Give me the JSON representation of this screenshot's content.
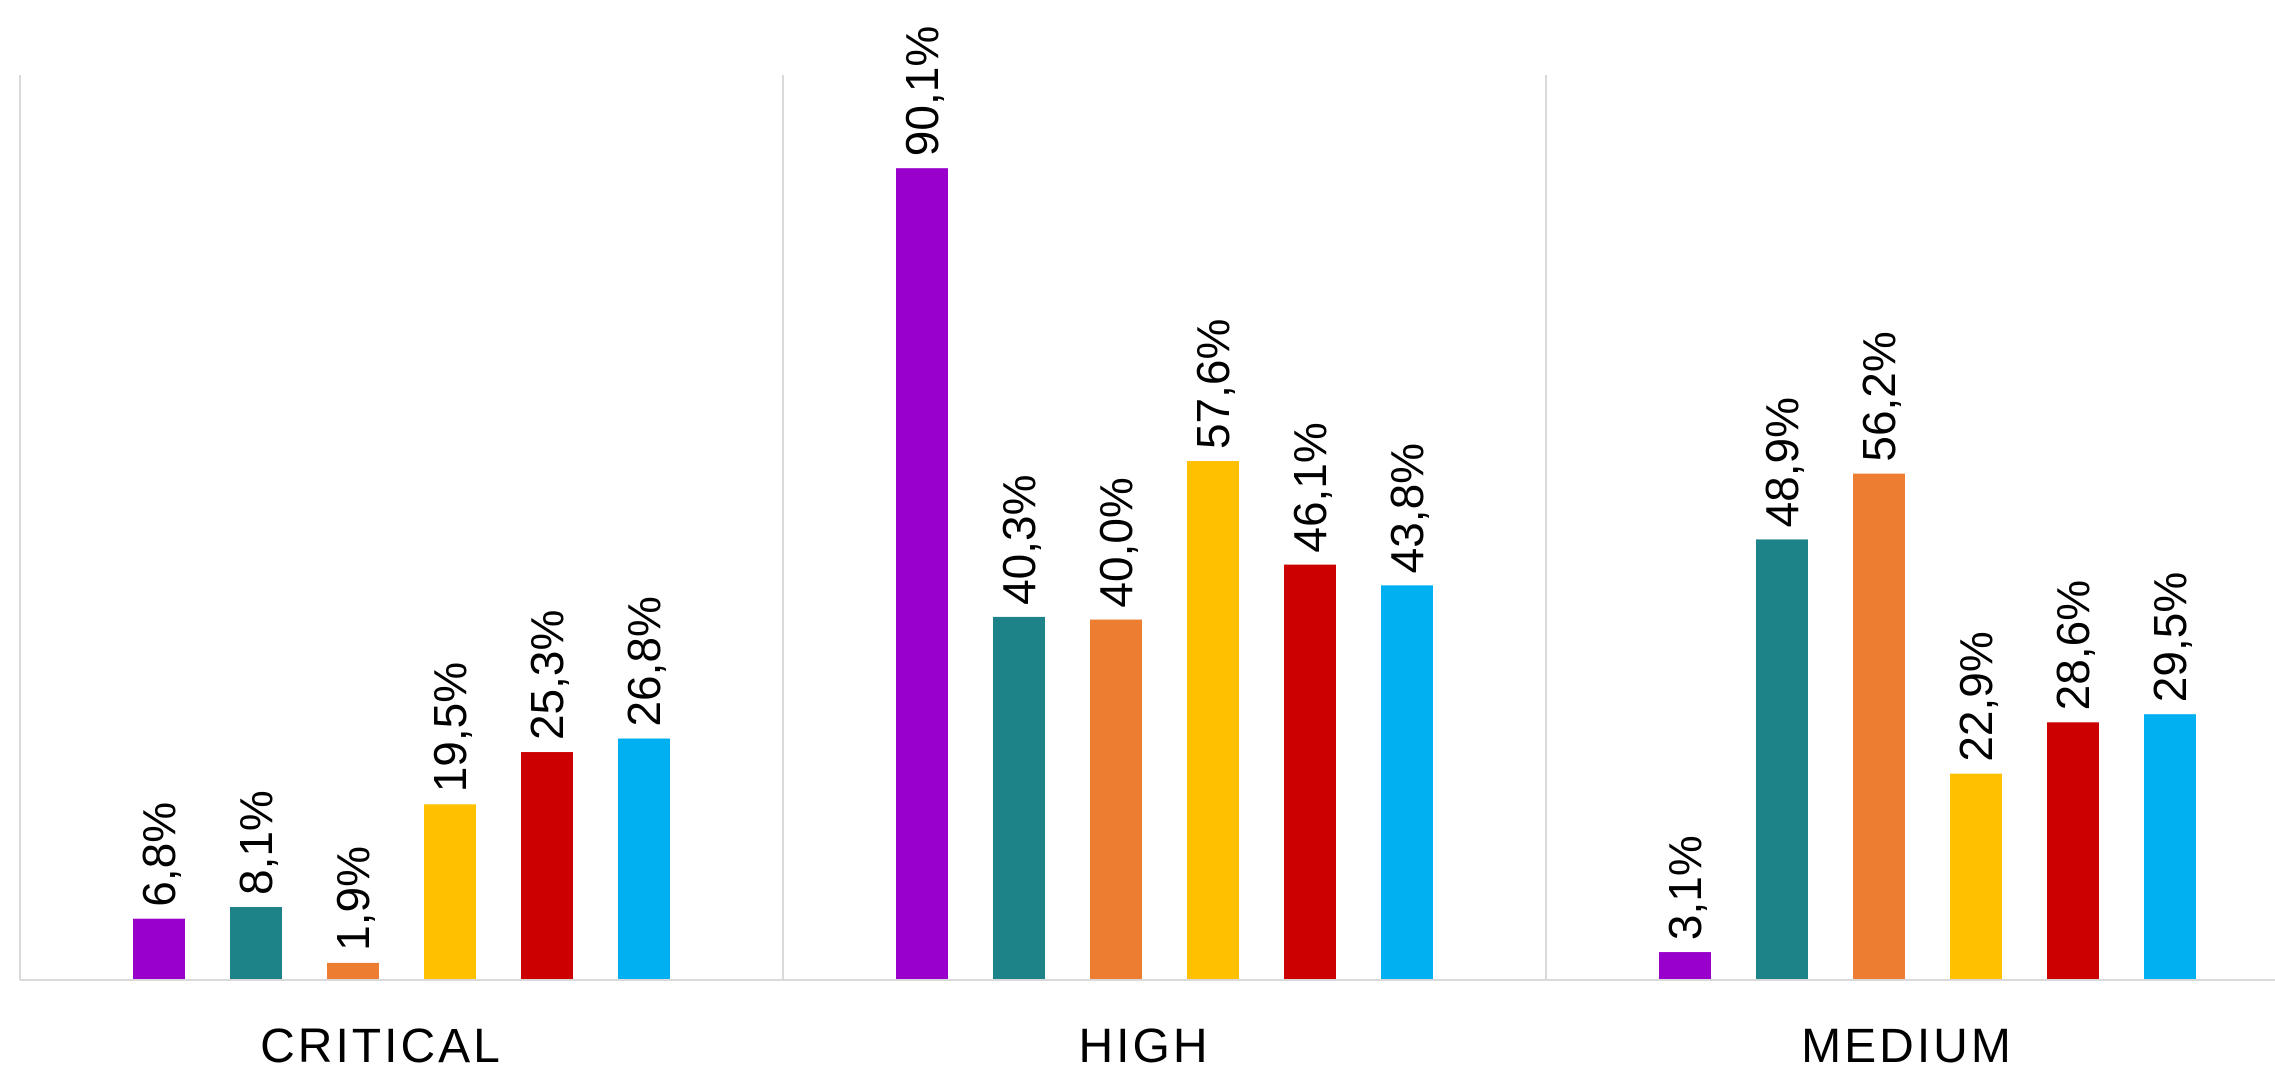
{
  "chart_data": {
    "type": "bar",
    "categories": [
      "CRITICAL",
      "HIGH",
      "MEDIUM"
    ],
    "series": [
      {
        "values": [
          6.8,
          90.1,
          3.1
        ],
        "labels": [
          "6,8%",
          "90,1%",
          "3,1%"
        ],
        "color": "#9900CC"
      },
      {
        "values": [
          8.1,
          40.3,
          48.9
        ],
        "labels": [
          "8,1%",
          "40,3%",
          "48,9%"
        ],
        "color": "#1E8388"
      },
      {
        "values": [
          1.9,
          40.0,
          56.2
        ],
        "labels": [
          "1,9%",
          "40,0%",
          "56,2%"
        ],
        "color": "#ED7D31"
      },
      {
        "values": [
          19.5,
          57.6,
          22.9
        ],
        "labels": [
          "19,5%",
          "57,6%",
          "22,9%"
        ],
        "color": "#FFC000"
      },
      {
        "values": [
          25.3,
          46.1,
          28.6
        ],
        "labels": [
          "25,3%",
          "46,1%",
          "28,6%"
        ],
        "color": "#CC0000"
      },
      {
        "values": [
          26.8,
          43.8,
          29.5
        ],
        "labels": [
          "26,8%",
          "43,8%",
          "29,5%"
        ],
        "color": "#00B0F0"
      }
    ],
    "ylim": [
      0,
      100
    ],
    "grid": false,
    "legend": "none",
    "title": "",
    "xlabel": "",
    "ylabel": ""
  }
}
